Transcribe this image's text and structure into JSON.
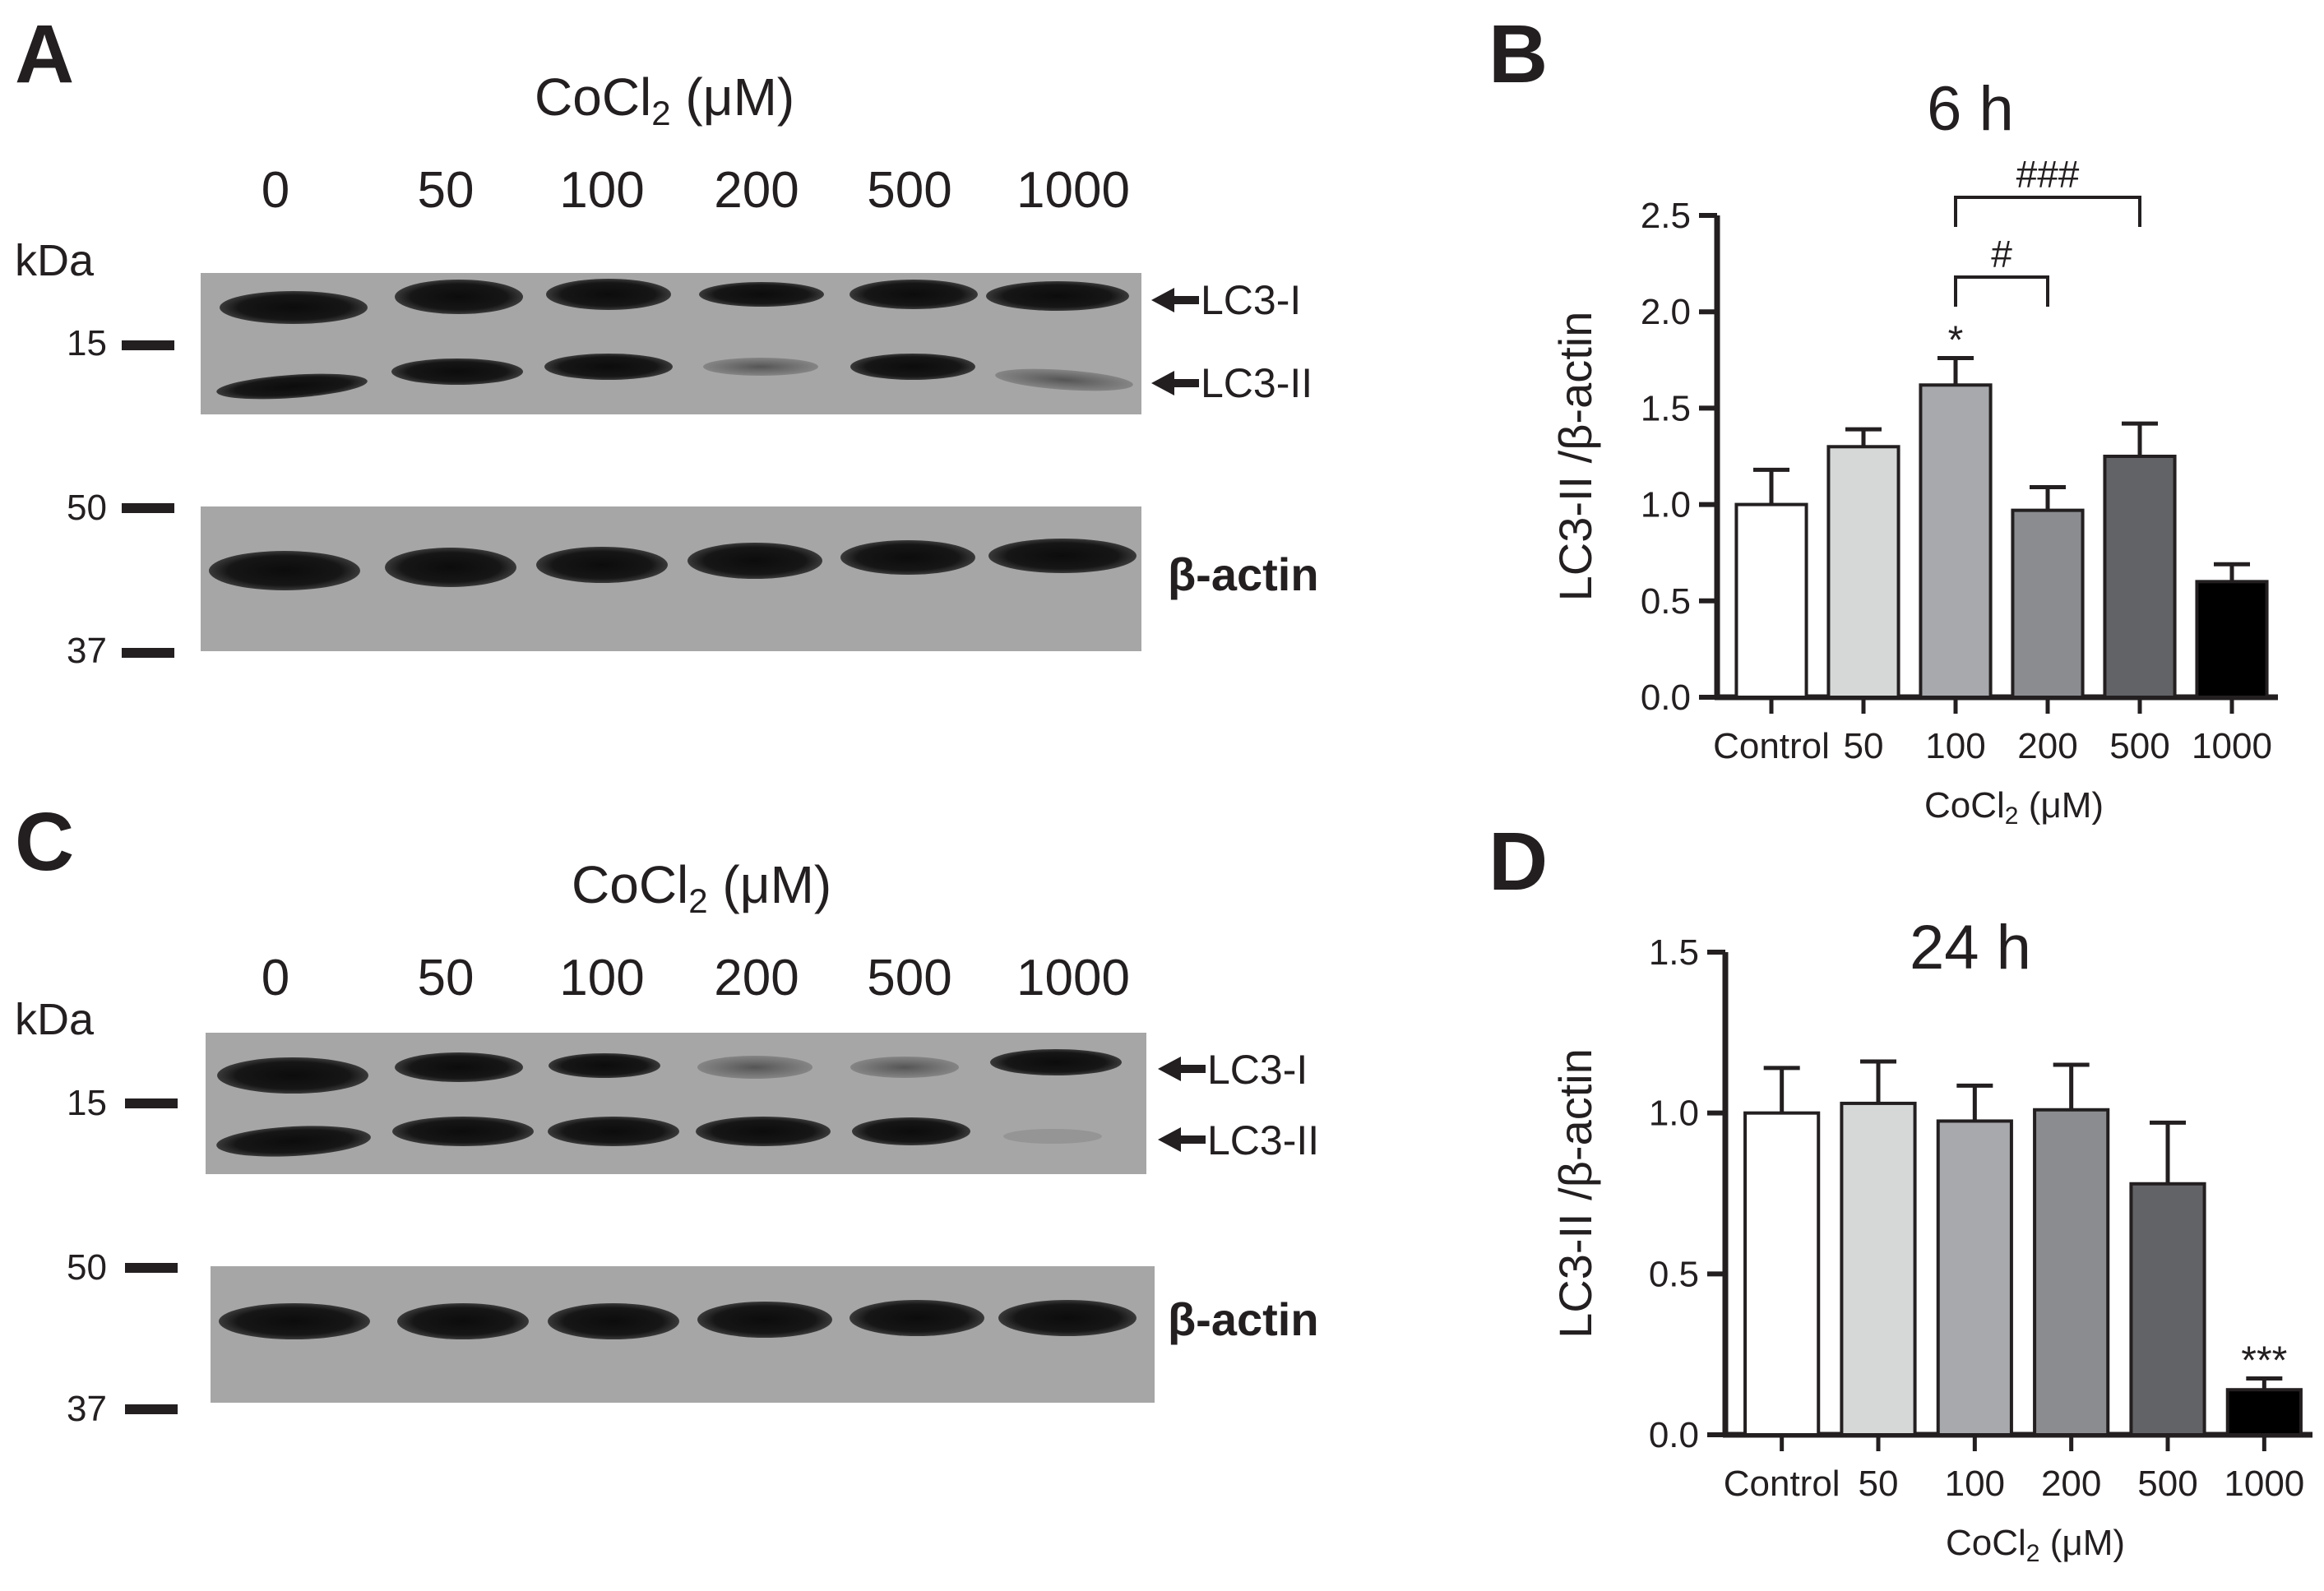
{
  "panels": {
    "A": {
      "letter": "A",
      "header": "CoCl2 (μM)",
      "header_base": "CoCl",
      "header_sub": "2",
      "header_unit": " (μM)",
      "lanes": [
        "0",
        "50",
        "100",
        "200",
        "500",
        "1000"
      ],
      "kda_label": "kDa",
      "markers": [
        "15",
        "50",
        "37"
      ],
      "band_labels": [
        "LC3-I",
        "LC3-II"
      ],
      "loading_label": "β-actin"
    },
    "C": {
      "letter": "C",
      "header": "CoCl2 (μM)",
      "header_base": "CoCl",
      "header_sub": "2",
      "header_unit": " (μM)",
      "lanes": [
        "0",
        "50",
        "100",
        "200",
        "500",
        "1000"
      ],
      "kda_label": "kDa",
      "markers": [
        "15",
        "50",
        "37"
      ],
      "band_labels": [
        "LC3-I",
        "LC3-II"
      ],
      "loading_label": "β-actin"
    }
  },
  "chart_data": [
    {
      "panel": "B",
      "type": "bar",
      "title": "6 h",
      "xlabel": "CoCl2 (μM)",
      "xlabel_base": "CoCl",
      "xlabel_sub": "2",
      "xlabel_unit": " (μM)",
      "ylabel": "LC3-II /β-actin",
      "categories": [
        "Control",
        "50",
        "100",
        "200",
        "500",
        "1000"
      ],
      "values": [
        1.0,
        1.3,
        1.62,
        0.97,
        1.25,
        0.6
      ],
      "errors": [
        0.18,
        0.09,
        0.14,
        0.12,
        0.17,
        0.09
      ],
      "colors": [
        "#ffffff",
        "#d6d8d8",
        "#a7a9ac",
        "#8b8c8f",
        "#626366",
        "#000000"
      ],
      "ylim": [
        0,
        2.5
      ],
      "yticks": [
        "0.0",
        "0.5",
        "1.0",
        "1.5",
        "2.0",
        "2.5"
      ],
      "annotations": [
        {
          "category": "100",
          "text": "*"
        }
      ],
      "brackets": [
        {
          "from": "100",
          "to": "200",
          "text": "#"
        },
        {
          "from": "100",
          "to": "500",
          "text": "###"
        }
      ]
    },
    {
      "panel": "D",
      "type": "bar",
      "title": "24 h",
      "xlabel": "CoCl2 (μM)",
      "xlabel_base": "CoCl",
      "xlabel_sub": "2",
      "xlabel_unit": " (μM)",
      "ylabel": "LC3-II /β-actin",
      "categories": [
        "Control",
        "50",
        "100",
        "200",
        "500",
        "1000"
      ],
      "values": [
        1.0,
        1.03,
        0.975,
        1.01,
        0.78,
        0.14
      ],
      "errors": [
        0.14,
        0.13,
        0.11,
        0.14,
        0.19,
        0.035
      ],
      "colors": [
        "#ffffff",
        "#d6d8d8",
        "#a7a9ac",
        "#8b8c8f",
        "#626366",
        "#000000"
      ],
      "ylim": [
        0,
        1.5
      ],
      "yticks": [
        "0.0",
        "0.5",
        "1.0",
        "1.5"
      ],
      "annotations": [
        {
          "category": "1000",
          "text": "***"
        }
      ],
      "brackets": []
    }
  ]
}
